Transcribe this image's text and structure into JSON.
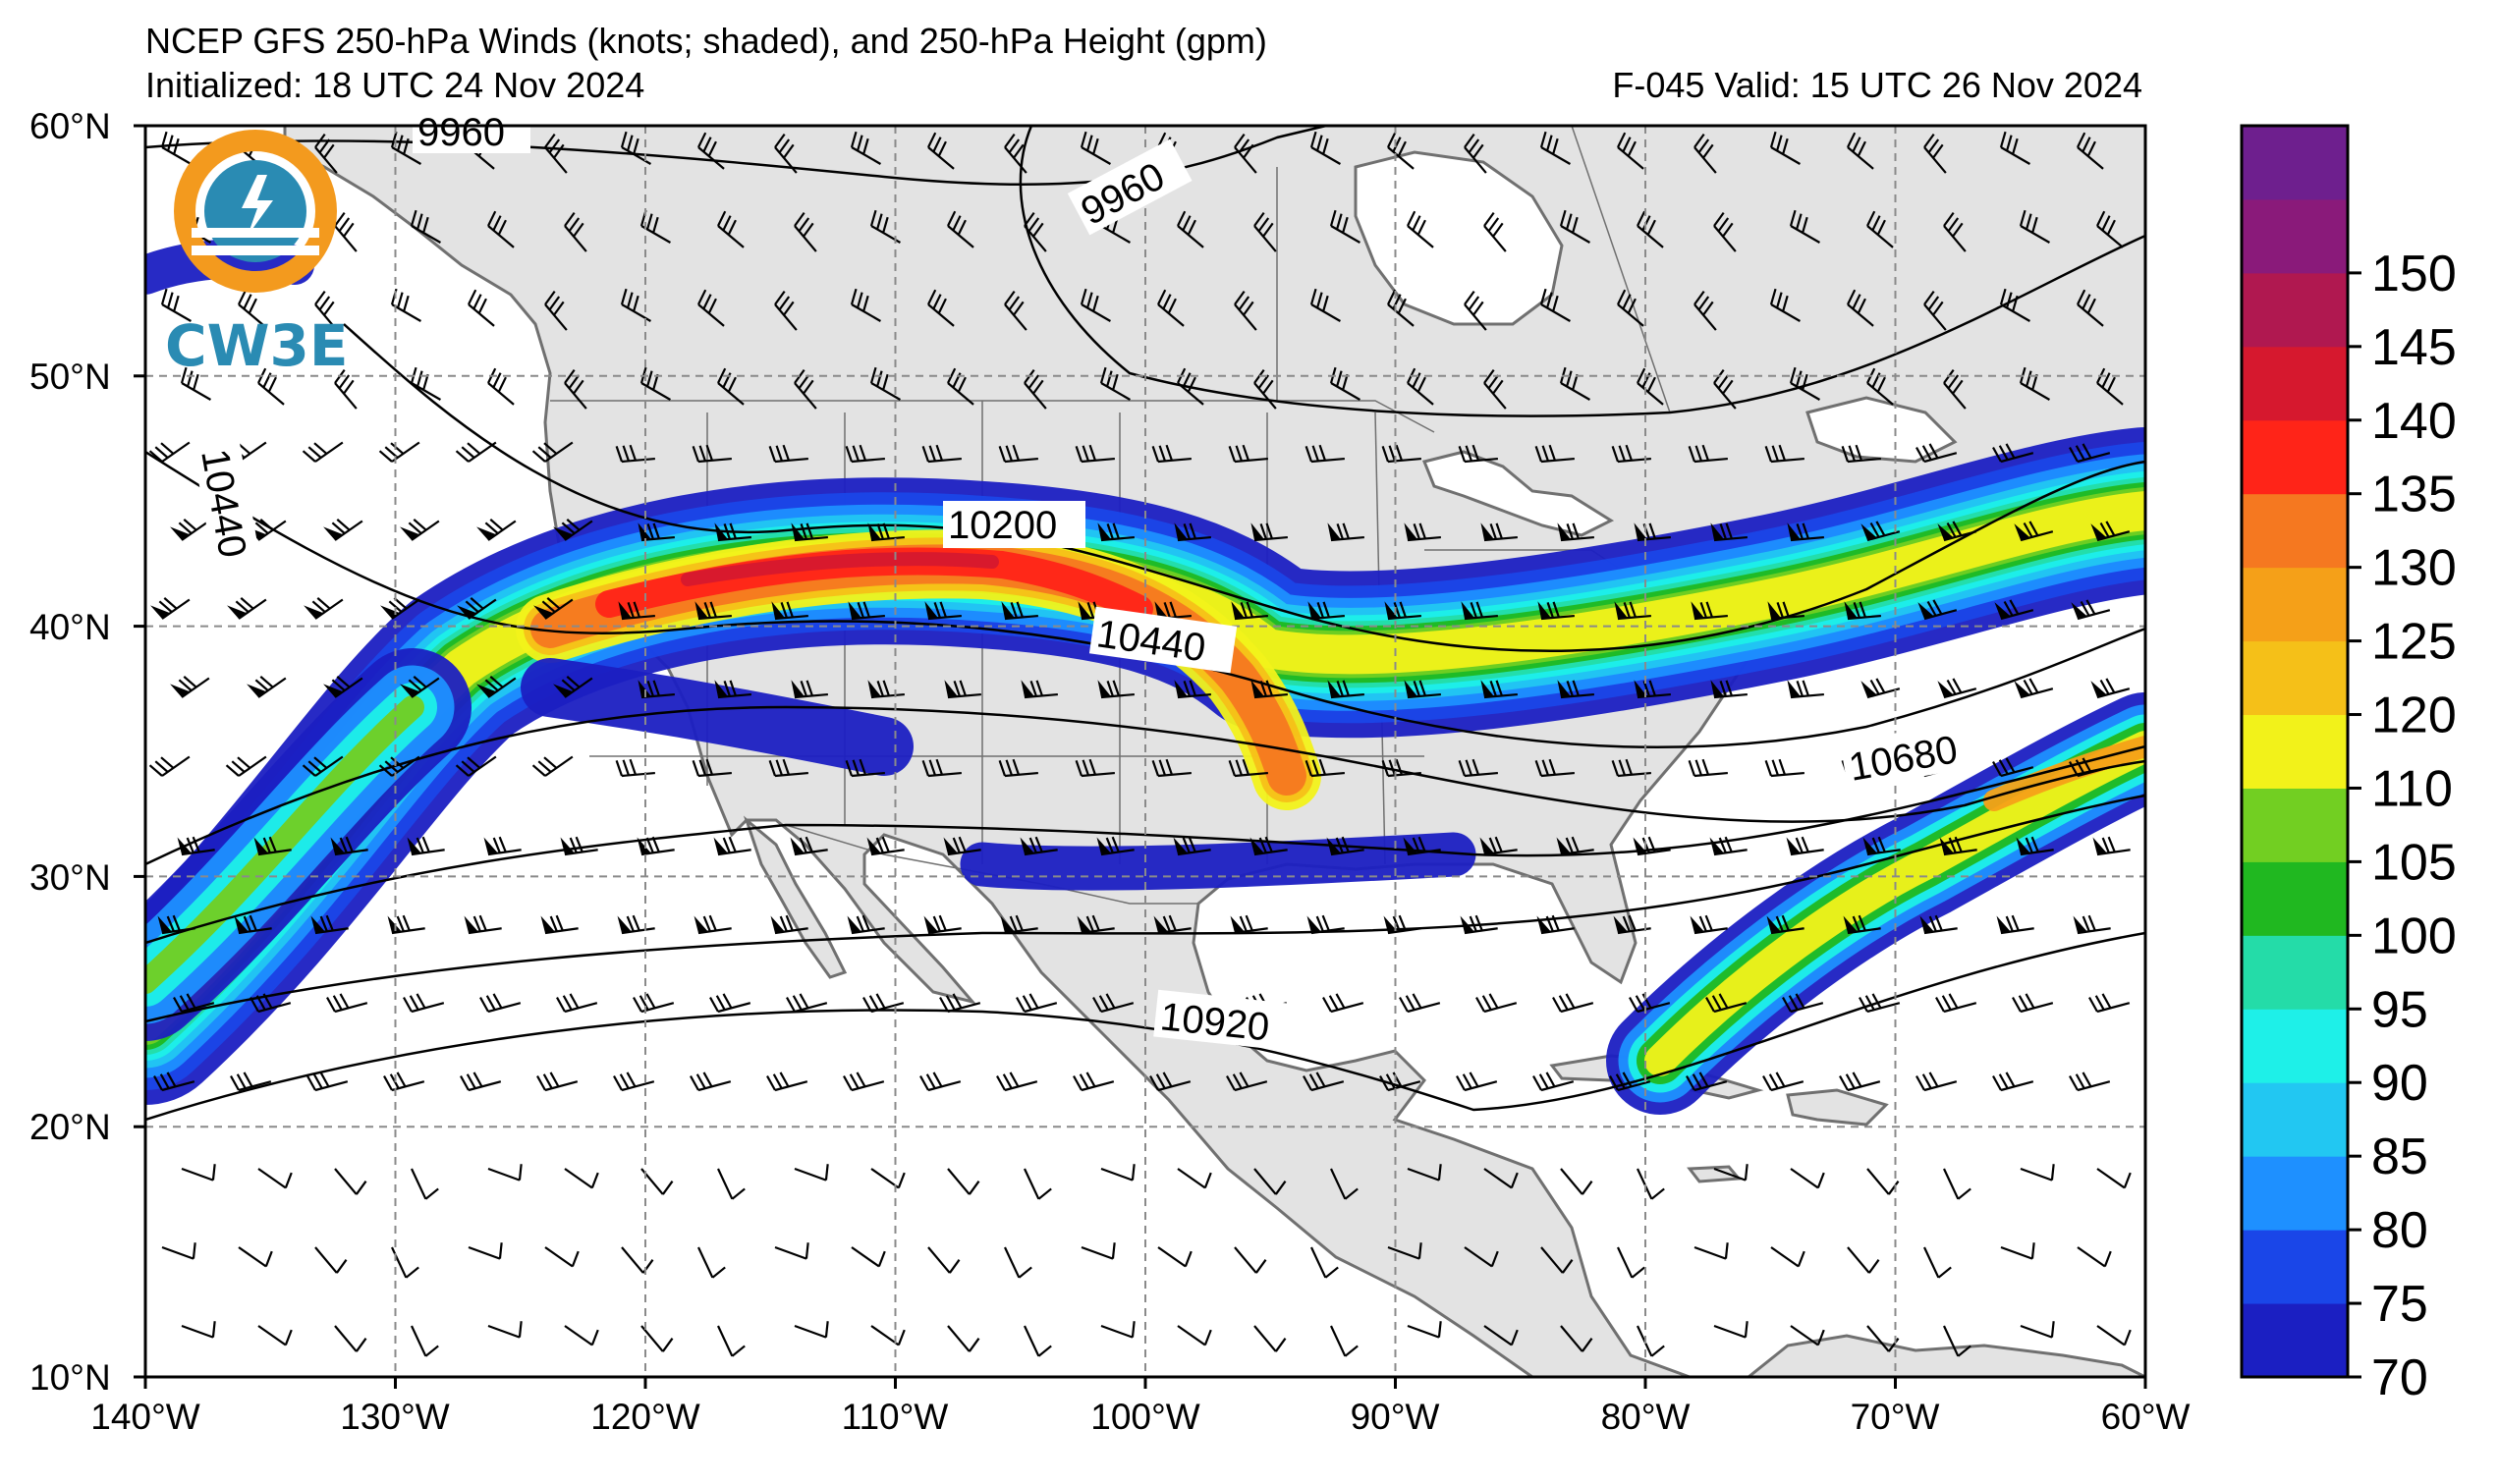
{
  "title": {
    "line1": "NCEP GFS 250-hPa Winds (knots; shaded), and 250-hPa Height (gpm)",
    "line2_left": "Initialized: 18 UTC 24 Nov 2024",
    "line2_right": "F-045  Valid: 15 UTC 26 Nov 2024"
  },
  "logo": {
    "text": "CW3E"
  },
  "map": {
    "lon_range": [
      -140,
      -60
    ],
    "lat_range": [
      10,
      60
    ],
    "lat_ticks": [
      "10°N",
      "20°N",
      "30°N",
      "40°N",
      "50°N",
      "60°N"
    ],
    "lon_ticks": [
      "140°W",
      "130°W",
      "120°W",
      "110°W",
      "100°W",
      "90°W",
      "80°W",
      "70°W",
      "60°W"
    ],
    "grid": "dashed every 10 degrees",
    "contour_labels": [
      "9960",
      "9960",
      "10440",
      "10200",
      "10440",
      "10680",
      "10920"
    ]
  },
  "colorbar": {
    "levels": [
      70,
      75,
      80,
      85,
      90,
      95,
      100,
      105,
      110,
      120,
      125,
      130,
      135,
      140,
      145,
      150
    ],
    "labels": [
      "70",
      "75",
      "80",
      "85",
      "90",
      "95",
      "100",
      "105",
      "110",
      "120",
      "125",
      "130",
      "135",
      "140",
      "145",
      "150"
    ],
    "colors": [
      "#1b1fc2",
      "#1a46e8",
      "#1e90ff",
      "#22c7f2",
      "#1ef0e8",
      "#24dca8",
      "#20b820",
      "#72cf22",
      "#f2f21a",
      "#f5c018",
      "#f5a018",
      "#f57820",
      "#ff2418",
      "#d6182e",
      "#b01850",
      "#8a1a7a",
      "#6e1f8e"
    ]
  },
  "colors": {
    "land": "#e3e3e3",
    "ocean": "#ffffff",
    "coast": "#707070",
    "grid": "#8a8a8a"
  }
}
